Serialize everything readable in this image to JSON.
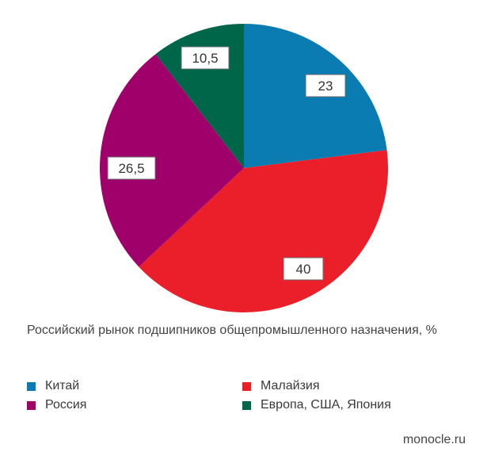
{
  "chart_data": {
    "type": "pie",
    "title": "Российский рынок подшипников общепромышленного назначения, %",
    "categories": [
      "Китай",
      "Малайзия",
      "Россия",
      "Европа, США, Япония"
    ],
    "values": [
      23,
      40,
      26.5,
      10.5
    ],
    "value_labels": [
      "23",
      "40",
      "26,5",
      "10,5"
    ],
    "colors": [
      "#0b7cb2",
      "#ea1f2a",
      "#a0006a",
      "#00664a"
    ],
    "start_angle_deg": 0,
    "direction": "clockwise",
    "legend_position": "bottom",
    "legend_order": [
      0,
      2,
      1,
      3
    ]
  },
  "source": "monocle.ru"
}
